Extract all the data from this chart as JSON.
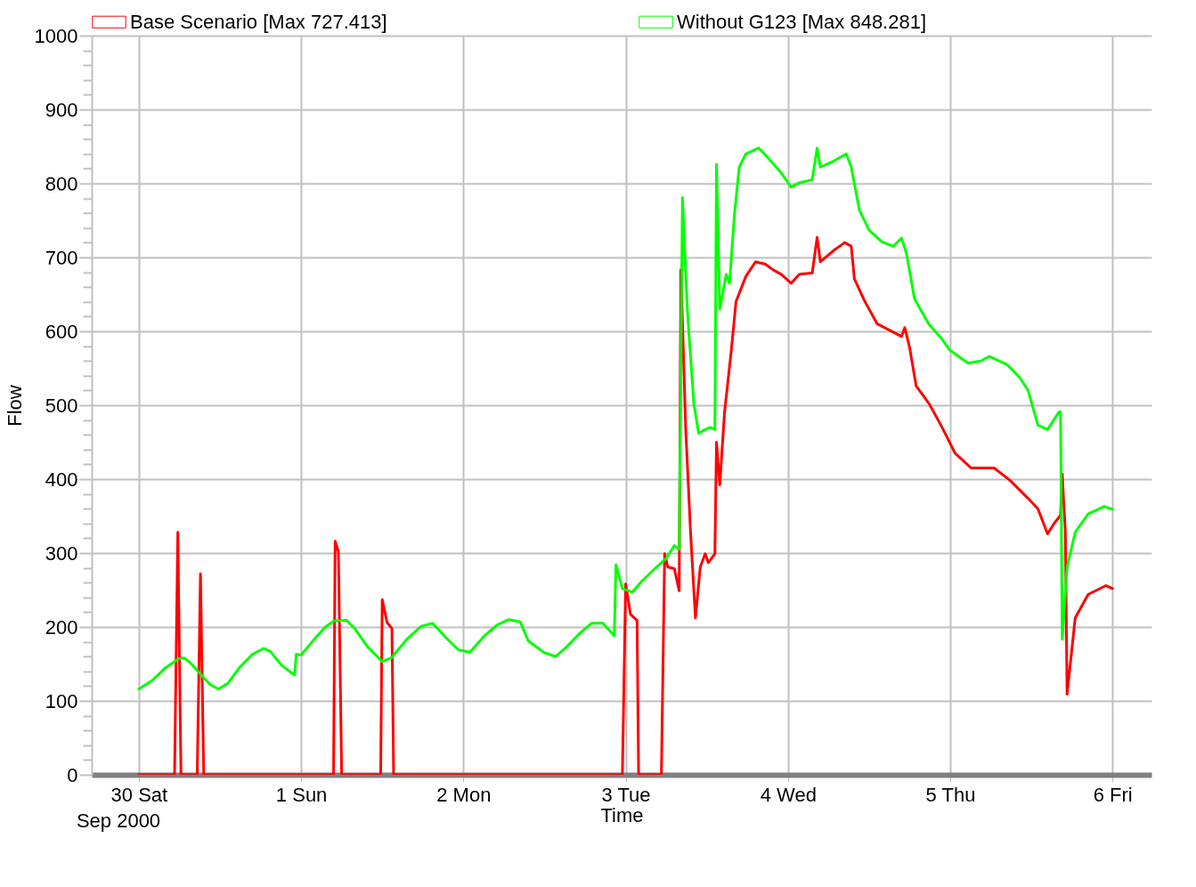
{
  "chart_data": {
    "type": "line",
    "xlabel": "Time",
    "ylabel": "Flow",
    "annotations": [
      "Sep 2000"
    ],
    "xlim": [
      "2000-09-29T17:02",
      "2000-10-06T05:46"
    ],
    "xticks": [
      {
        "value": "2000-09-30",
        "label": "30 Sat"
      },
      {
        "value": "2000-10-01",
        "label": "1 Sun"
      },
      {
        "value": "2000-10-02",
        "label": "2 Mon"
      },
      {
        "value": "2000-10-03",
        "label": "3 Tue"
      },
      {
        "value": "2000-10-04",
        "label": "4 Wed"
      },
      {
        "value": "2000-10-05",
        "label": "5 Thu"
      },
      {
        "value": "2000-10-06",
        "label": "6 Fri"
      }
    ],
    "ylim": [
      0,
      1000
    ],
    "yticks": [
      0,
      {
        "value": 20,
        "label": null
      },
      {
        "value": 40,
        "label": null
      },
      {
        "value": 60,
        "label": null
      },
      {
        "value": 80,
        "label": null
      },
      100,
      {
        "value": 120,
        "label": null
      },
      {
        "value": 140,
        "label": null
      },
      {
        "value": 160,
        "label": null
      },
      {
        "value": 180,
        "label": null
      },
      200,
      {
        "value": 220,
        "label": null
      },
      {
        "value": 240,
        "label": null
      },
      {
        "value": 260,
        "label": null
      },
      {
        "value": 280,
        "label": null
      },
      300,
      {
        "value": 320,
        "label": null
      },
      {
        "value": 340,
        "label": null
      },
      {
        "value": 360,
        "label": null
      },
      {
        "value": 380,
        "label": null
      },
      400,
      {
        "value": 420,
        "label": null
      },
      {
        "value": 440,
        "label": null
      },
      {
        "value": 460,
        "label": null
      },
      {
        "value": 480,
        "label": null
      },
      500,
      {
        "value": 520,
        "label": null
      },
      {
        "value": 540,
        "label": null
      },
      {
        "value": 560,
        "label": null
      },
      {
        "value": 580,
        "label": null
      },
      600,
      {
        "value": 620,
        "label": null
      },
      {
        "value": 640,
        "label": null
      },
      {
        "value": 660,
        "label": null
      },
      {
        "value": 680,
        "label": null
      },
      700,
      {
        "value": 720,
        "label": null
      },
      {
        "value": 740,
        "label": null
      },
      {
        "value": 760,
        "label": null
      },
      {
        "value": 780,
        "label": null
      },
      800,
      {
        "value": 820,
        "label": null
      },
      {
        "value": 840,
        "label": null
      },
      {
        "value": 860,
        "label": null
      },
      {
        "value": 880,
        "label": null
      },
      900,
      {
        "value": 920,
        "label": null
      },
      {
        "value": 940,
        "label": null
      },
      {
        "value": 960,
        "label": null
      },
      {
        "value": 980,
        "label": null
      },
      1000
    ],
    "grid": true,
    "legend": "top",
    "marker": "none",
    "line_style": "solid",
    "series": [
      {
        "name": "Base Scenario [Max 727.413]",
        "color": "#ff0000",
        "x": [
          "2000-09-30T00:00",
          "2000-09-30T05:17",
          "2000-09-30T05:46",
          "2000-09-30T06:14",
          "2000-09-30T08:38",
          "2000-09-30T09:07",
          "2000-09-30T09:36",
          "2000-10-01T04:48",
          "2000-10-01T05:02",
          "2000-10-01T05:31",
          "2000-10-01T06:00",
          "2000-10-01T11:46",
          "2000-10-01T12:00",
          "2000-10-01T12:43",
          "2000-10-01T13:26",
          "2000-10-01T13:41",
          "2000-10-02T23:31",
          "2000-10-03T00:00",
          "2000-10-03T00:43",
          "2000-10-03T01:41",
          "2000-10-03T01:55",
          "2000-10-03T05:17",
          "2000-10-03T05:46",
          "2000-10-03T06:14",
          "2000-10-03T07:12",
          "2000-10-03T07:55",
          "2000-10-03T08:10",
          "2000-10-03T08:53",
          "2000-10-03T09:36",
          "2000-10-03T10:19",
          "2000-10-03T11:02",
          "2000-10-03T11:46",
          "2000-10-03T12:14",
          "2000-10-03T13:12",
          "2000-10-03T13:26",
          "2000-10-03T13:55",
          "2000-10-03T14:38",
          "2000-10-03T15:36",
          "2000-10-03T16:19",
          "2000-10-03T17:46",
          "2000-10-03T19:12",
          "2000-10-03T20:38",
          "2000-10-03T21:50",
          "2000-10-03T23:02",
          "2000-10-04T00:29",
          "2000-10-04T01:41",
          "2000-10-04T03:36",
          "2000-10-04T04:19",
          "2000-10-04T04:48",
          "2000-10-04T06:43",
          "2000-10-04T08:24",
          "2000-10-04T09:22",
          "2000-10-04T09:50",
          "2000-10-04T11:17",
          "2000-10-04T13:12",
          "2000-10-04T15:07",
          "2000-10-04T16:48",
          "2000-10-04T17:17",
          "2000-10-04T18:00",
          "2000-10-04T18:58",
          "2000-10-04T20:53",
          "2000-10-04T22:48",
          "2000-10-05T00:43",
          "2000-10-05T03:07",
          "2000-10-05T06:29",
          "2000-10-05T08:53",
          "2000-10-05T11:31",
          "2000-10-05T12:58",
          "2000-10-05T14:24",
          "2000-10-05T15:22",
          "2000-10-05T16:19",
          "2000-10-05T16:34",
          "2000-10-05T17:02",
          "2000-10-05T17:17",
          "2000-10-05T18:29",
          "2000-10-05T20:24",
          "2000-10-05T23:02",
          "2000-10-06T00:00"
        ],
        "values": [
          0,
          0,
          328,
          0,
          0,
          272,
          0,
          0,
          316,
          302,
          0,
          0,
          237,
          206,
          198,
          0,
          0,
          258,
          217,
          209,
          0,
          0,
          299,
          281,
          279,
          249,
          683,
          467,
          328,
          212,
          281,
          299,
          287,
          299,
          450,
          392,
          491,
          572,
          640,
          674,
          694,
          691,
          683,
          677,
          665,
          677,
          679,
          727,
          694,
          709,
          720,
          715,
          671,
          642,
          610,
          601,
          593,
          605,
          578,
          526,
          502,
          470,
          435,
          415,
          415,
          398,
          374,
          360,
          326,
          340,
          351,
          407,
          328,
          109,
          212,
          244,
          256,
          252
        ]
      },
      {
        "name": "Without G123 [Max 848.281]",
        "color": "#00ff00",
        "x": [
          "2000-09-30T00:00",
          "2000-09-30T02:02",
          "2000-09-30T03:58",
          "2000-09-30T05:53",
          "2000-09-30T06:43",
          "2000-09-30T07:41",
          "2000-09-30T09:07",
          "2000-09-30T10:34",
          "2000-09-30T11:46",
          "2000-09-30T13:12",
          "2000-09-30T14:53",
          "2000-09-30T16:48",
          "2000-09-30T18:29",
          "2000-09-30T19:26",
          "2000-09-30T21:07",
          "2000-09-30T23:02",
          "2000-09-30T23:17",
          "2000-10-01T00:00",
          "2000-10-01T01:55",
          "2000-10-01T03:36",
          "2000-10-01T04:48",
          "2000-10-01T06:43",
          "2000-10-01T07:55",
          "2000-10-01T09:50",
          "2000-10-01T12:00",
          "2000-10-01T13:26",
          "2000-10-01T15:36",
          "2000-10-01T17:46",
          "2000-10-01T19:26",
          "2000-10-01T21:22",
          "2000-10-01T23:17",
          "2000-10-02T00:58",
          "2000-10-02T03:07",
          "2000-10-02T05:02",
          "2000-10-02T06:43",
          "2000-10-02T08:24",
          "2000-10-02T09:36",
          "2000-10-02T12:00",
          "2000-10-02T13:41",
          "2000-10-02T15:22",
          "2000-10-02T17:17",
          "2000-10-02T18:58",
          "2000-10-02T20:38",
          "2000-10-02T22:19",
          "2000-10-02T22:34",
          "2000-10-02T23:31",
          "2000-10-03T00:58",
          "2000-10-03T02:24",
          "2000-10-03T04:34",
          "2000-10-03T06:00",
          "2000-10-03T07:12",
          "2000-10-03T07:55",
          "2000-10-03T08:24",
          "2000-10-03T09:07",
          "2000-10-03T10:05",
          "2000-10-03T10:48",
          "2000-10-03T11:46",
          "2000-10-03T12:29",
          "2000-10-03T13:12",
          "2000-10-03T13:26",
          "2000-10-03T13:55",
          "2000-10-03T14:53",
          "2000-10-03T15:22",
          "2000-10-03T16:05",
          "2000-10-03T16:48",
          "2000-10-03T17:46",
          "2000-10-03T19:41",
          "2000-10-03T21:07",
          "2000-10-03T23:02",
          "2000-10-04T00:29",
          "2000-10-04T01:41",
          "2000-10-04T03:36",
          "2000-10-04T04:19",
          "2000-10-04T04:48",
          "2000-10-04T06:43",
          "2000-10-04T08:38",
          "2000-10-04T09:22",
          "2000-10-04T10:34",
          "2000-10-04T12:00",
          "2000-10-04T13:55",
          "2000-10-04T15:36",
          "2000-10-04T16:48",
          "2000-10-04T17:31",
          "2000-10-04T18:43",
          "2000-10-04T20:53",
          "2000-10-04T22:34",
          "2000-10-05T00:00",
          "2000-10-05T02:38",
          "2000-10-05T04:34",
          "2000-10-05T05:46",
          "2000-10-05T08:24",
          "2000-10-05T10:19",
          "2000-10-05T11:31",
          "2000-10-05T12:58",
          "2000-10-05T14:24",
          "2000-10-05T16:05",
          "2000-10-05T16:19",
          "2000-10-05T16:34",
          "2000-10-05T17:17",
          "2000-10-05T18:29",
          "2000-10-05T20:24",
          "2000-10-05T22:48",
          "2000-10-06T00:00"
        ],
        "values": [
          116,
          128,
          145,
          157,
          158,
          151,
          136,
          122,
          116,
          124,
          145,
          163,
          171,
          167,
          148,
          135,
          163,
          162,
          183,
          200,
          208,
          209,
          198,
          173,
          153,
          159,
          183,
          201,
          205,
          186,
          169,
          166,
          188,
          203,
          210,
          207,
          181,
          165,
          160,
          174,
          192,
          205,
          205,
          188,
          284,
          252,
          247,
          262,
          281,
          293,
          310,
          305,
          781,
          630,
          502,
          462,
          467,
          470,
          467,
          826,
          630,
          677,
          665,
          758,
          822,
          840,
          848,
          834,
          814,
          795,
          801,
          805,
          848,
          822,
          830,
          840,
          822,
          764,
          737,
          721,
          715,
          726,
          706,
          644,
          609,
          592,
          574,
          557,
          560,
          566,
          555,
          537,
          520,
          473,
          467,
          491,
          491,
          183,
          281,
          328,
          353,
          363,
          359
        ]
      }
    ]
  }
}
